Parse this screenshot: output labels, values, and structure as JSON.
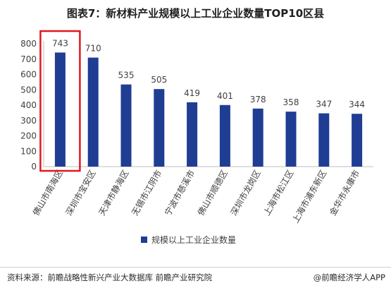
{
  "title": "图表7：新材料产业规模以上工业企业数量TOP10区县",
  "source": "资料来源：前瞻战略性新兴产业大数据库 前瞻产业研究院",
  "brand": "@前瞻经济学人APP",
  "colors": {
    "bar": "#1f3d93",
    "highlight": "#e0191f",
    "axis": "#bfbfbf",
    "text": "#404040"
  },
  "chart_data": {
    "type": "bar",
    "categories": [
      "佛山市南海区",
      "深圳市宝安区",
      "天津市静海区",
      "无锡市江阴市",
      "宁波市慈溪市",
      "佛山市顺德区",
      "深圳市龙岗区",
      "上海市松江区",
      "上海市浦东新区",
      "金华市永康市"
    ],
    "series": [
      {
        "name": "规模以上工业企业数量",
        "values": [
          743,
          710,
          535,
          505,
          419,
          401,
          378,
          358,
          347,
          344
        ]
      }
    ],
    "ylim": [
      0,
      800
    ],
    "yticks": [
      0,
      100,
      200,
      300,
      400,
      500,
      600,
      700,
      800
    ],
    "highlighted_category": "佛山市南海区",
    "legend_position": "bottom",
    "grid": false
  }
}
